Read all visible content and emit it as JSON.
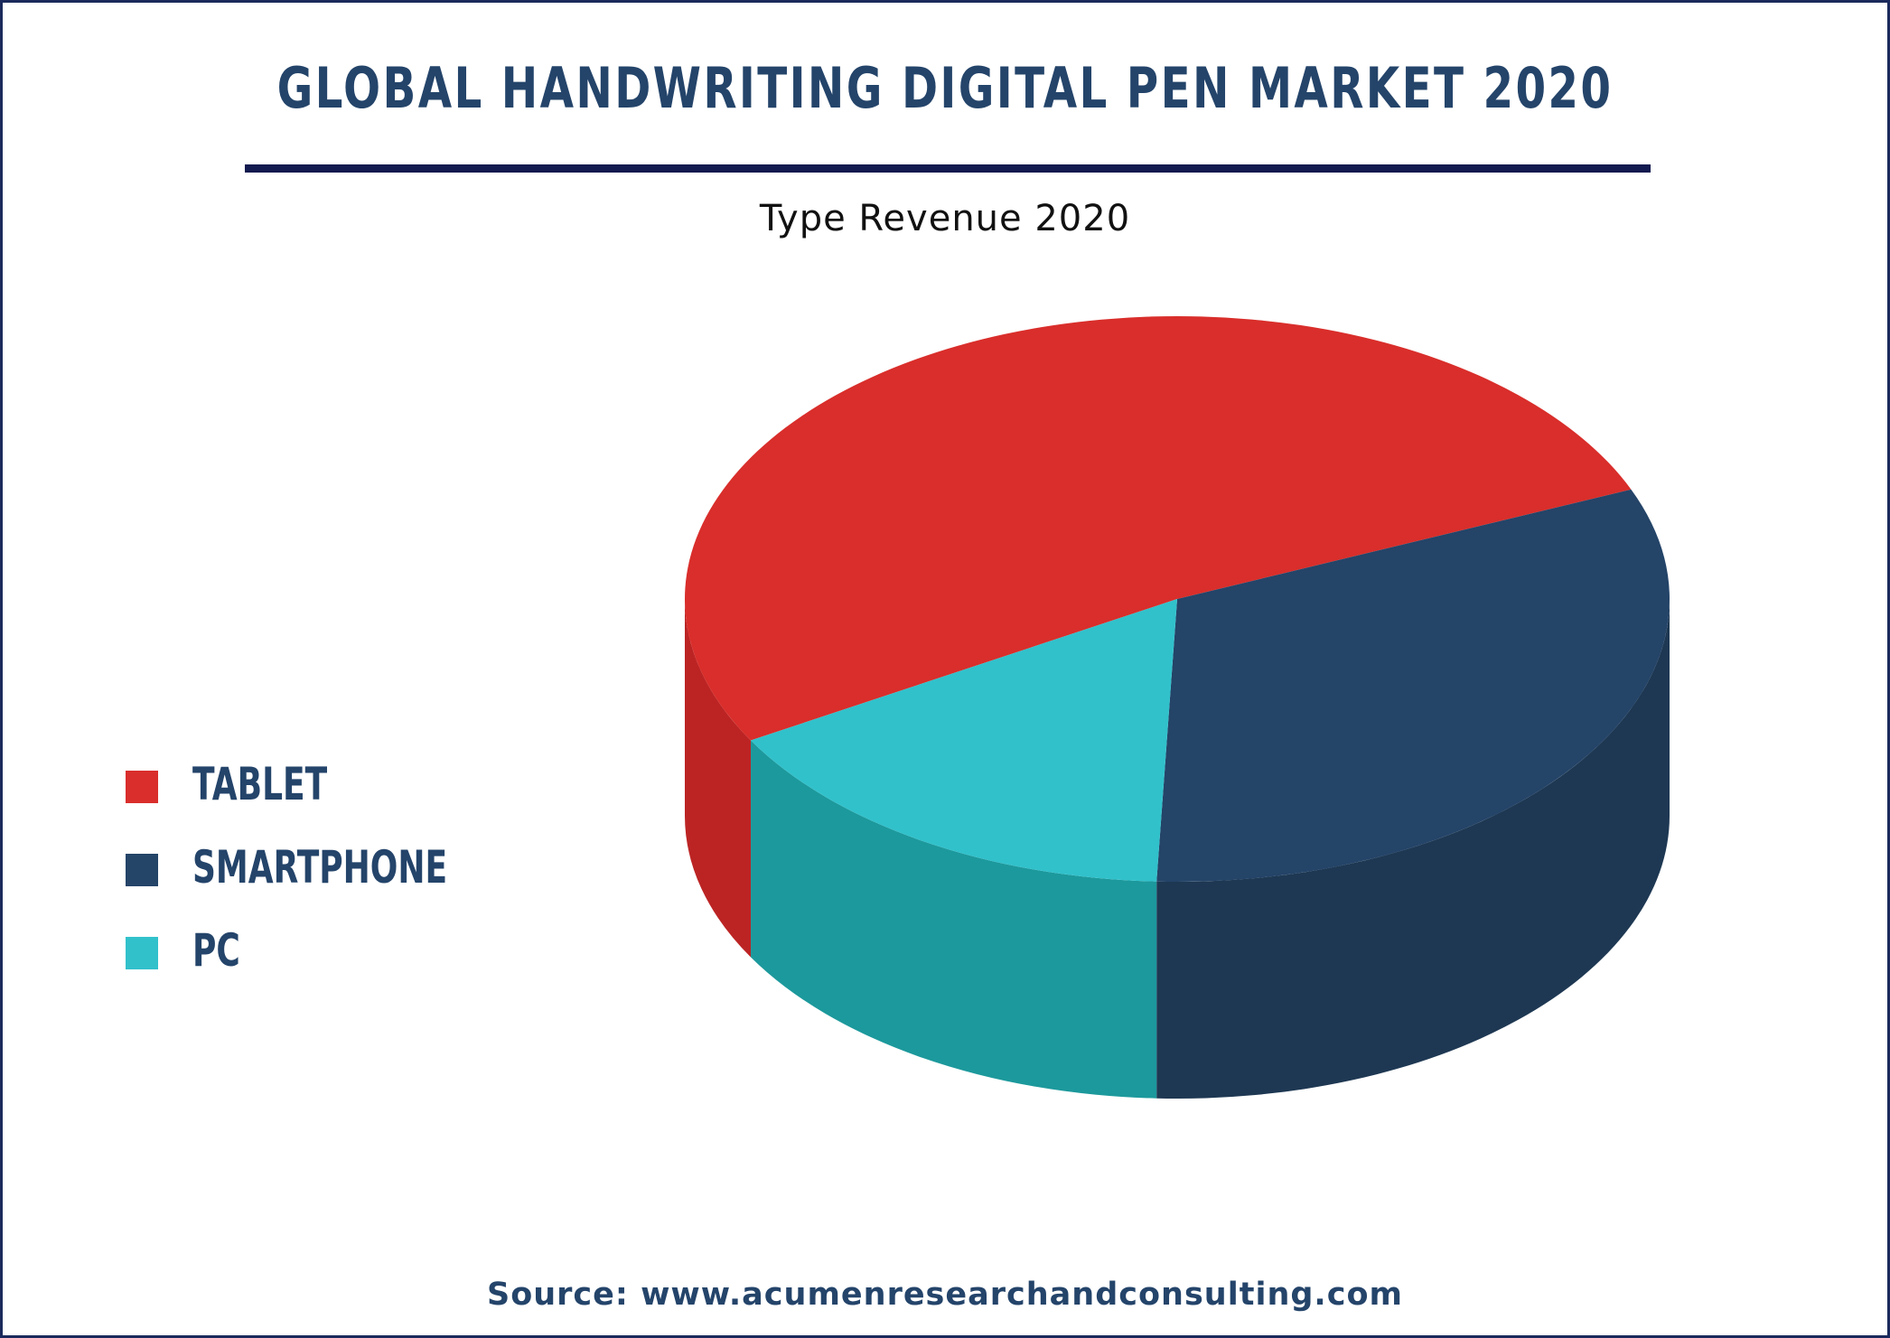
{
  "title": "GLOBAL HANDWRITING DIGITAL PEN MARKET 2020",
  "source": "Source: www.acumenresearchandconsulting.com",
  "colors": {
    "title": "#24446a",
    "rule": "#131a4f",
    "border": "#1b2a5c"
  },
  "chart_data": {
    "type": "pie",
    "style": "3d",
    "title": "Type Revenue 2020",
    "legend_position": "left",
    "series": [
      {
        "name": "TABLET",
        "value": 52,
        "color": "#d92e2b",
        "side_color": "#bc2424"
      },
      {
        "name": "SMARTPHONE",
        "value": 32,
        "color": "#244468",
        "side_color": "#1e3853"
      },
      {
        "name": "PC",
        "value": 16,
        "color": "#31c1cb",
        "side_color": "#1c999c"
      }
    ]
  }
}
